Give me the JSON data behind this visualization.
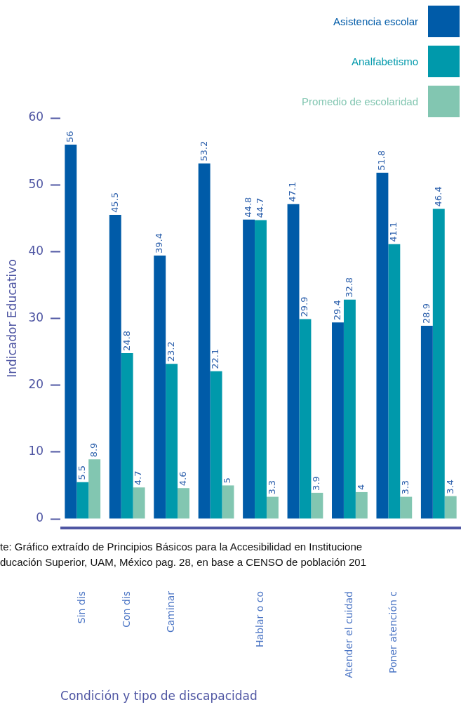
{
  "chart_data": {
    "type": "bar",
    "xlabel": "Condición y tipo de discapacidad",
    "ylabel": "Indicador Educativo",
    "categories": [
      "Sin dis",
      "Con dis",
      "Caminar",
      null,
      "Hablar o co",
      null,
      "Atender el cuidad",
      "Poner atención c",
      null
    ],
    "series": [
      {
        "name": "Asistencia escolar",
        "color": "#005ba8",
        "values": [
          56,
          45.5,
          39.4,
          53.2,
          44.8,
          47.1,
          29.4,
          51.8,
          28.9
        ]
      },
      {
        "name": "Analfabetismo",
        "color": "#0099ab",
        "values": [
          5.5,
          24.8,
          23.2,
          22.1,
          44.7,
          29.9,
          32.8,
          41.1,
          46.4
        ]
      },
      {
        "name": "Promedio de escolaridad",
        "color": "#82c6b1",
        "values": [
          8.9,
          4.7,
          4.6,
          5,
          3.3,
          3.9,
          4,
          3.3,
          3.4
        ]
      }
    ],
    "ylim": [
      0,
      60
    ],
    "yticks": [
      0,
      10,
      20,
      30,
      40,
      50,
      60
    ],
    "grid": false,
    "legend": "top right",
    "data_labels": true,
    "annotations": [
      "te: Gráfico extraído de Principios Básicos para la Accesibilidad en Institucione",
      "ducación Superior, UAM, México pag. 28, en base a CENSO de población 201"
    ]
  }
}
